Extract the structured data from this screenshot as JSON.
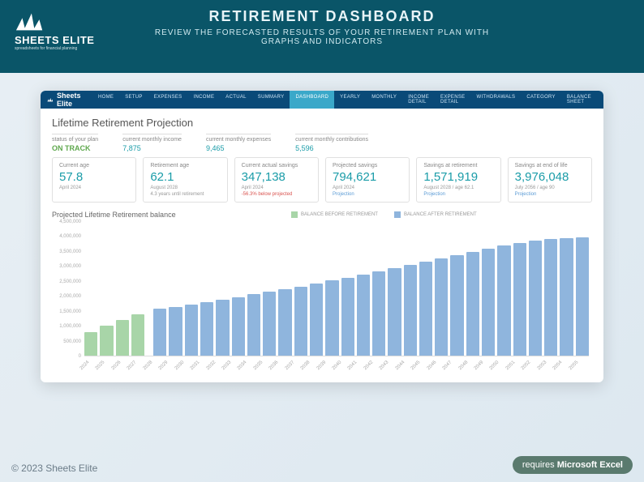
{
  "hero": {
    "logo_title": "SHEETS ELITE",
    "logo_sub": "spreadsheets for financial planning",
    "title": "RETIREMENT DASHBOARD",
    "subtitle": "REVIEW THE FORECASTED RESULTS OF YOUR RETIREMENT PLAN WITH\nGRAPHS AND INDICATORS"
  },
  "nav": {
    "brand": "Sheets Elite",
    "items": [
      "HOME",
      "SETUP",
      "EXPENSES",
      "INCOME",
      "ACTUAL",
      "SUMMARY",
      "DASHBOARD",
      "YEARLY",
      "MONTHLY",
      "INCOME DETAIL",
      "EXPENSE DETAIL",
      "WITHDRAWALS",
      "CATEGORY",
      "BALANCE SHEET"
    ],
    "active_index": 6
  },
  "section_title": "Lifetime Retirement Projection",
  "minis": [
    {
      "label": "status of your plan",
      "value": "ON TRACK",
      "cls": "green"
    },
    {
      "label": "current monthly income",
      "value": "7,875",
      "cls": "teal"
    },
    {
      "label": "current monthly expenses",
      "value": "9,465",
      "cls": "teal"
    },
    {
      "label": "current monthly contributions",
      "value": "5,596",
      "cls": "teal"
    }
  ],
  "stats": [
    {
      "label": "Current age",
      "value": "57.8",
      "value_color": "#1a9ca8",
      "sub1": "April 2024",
      "sub2": ""
    },
    {
      "label": "Retirement age",
      "value": "62.1",
      "value_color": "#1a9ca8",
      "sub1": "August 2028",
      "sub2": "4.3 years until retirement"
    },
    {
      "label": "Current actual savings",
      "value": "347,138",
      "value_color": "#1a9ca8",
      "sub1": "April 2024",
      "sub2": "-56.3% below projected",
      "sub2_cls": "red"
    },
    {
      "label": "Projected savings",
      "value": "794,621",
      "value_color": "#1a9ca8",
      "sub1": "April 2024",
      "sub2": "Projection",
      "sub2_cls": "link"
    },
    {
      "label": "Savings at retirement",
      "value": "1,571,919",
      "value_color": "#1a9ca8",
      "sub1": "August 2028 / age 62.1",
      "sub2": "Projection",
      "sub2_cls": "link"
    },
    {
      "label": "Savings at end of life",
      "value": "3,976,048",
      "value_color": "#1a9ca8",
      "sub1": "July 2056 / age 90",
      "sub2": "Projection",
      "sub2_cls": "link"
    }
  ],
  "chart": {
    "title": "Projected Lifetime Retirement balance",
    "legend": [
      {
        "label": "BALANCE BEFORE RETIREMENT",
        "color": "#a8d5a8"
      },
      {
        "label": "BALANCE AFTER RETIREMENT",
        "color": "#8fb5dd"
      }
    ],
    "ymax": 4500000,
    "yticks": [
      "4,500,000",
      "4,000,000",
      "3,500,000",
      "3,000,000",
      "2,500,000",
      "2,000,000",
      "1,500,000",
      "1,000,000",
      "500,000",
      "0"
    ],
    "years": [
      2024,
      2025,
      2026,
      2027,
      2028,
      2029,
      2030,
      2031,
      2032,
      2033,
      2034,
      2035,
      2036,
      2037,
      2038,
      2039,
      2040,
      2041,
      2042,
      2043,
      2044,
      2045,
      2046,
      2047,
      2048,
      2049,
      2050,
      2051,
      2052,
      2053,
      2054,
      2055
    ],
    "values": [
      800000,
      1000000,
      1200000,
      1400000,
      1571919,
      1650000,
      1730000,
      1810000,
      1890000,
      1970000,
      2060000,
      2150000,
      2240000,
      2330000,
      2430000,
      2530000,
      2630000,
      2730000,
      2830000,
      2940000,
      3050000,
      3160000,
      3270000,
      3380000,
      3490000,
      3600000,
      3700000,
      3790000,
      3860000,
      3920000,
      3960000,
      3976048
    ],
    "split_index": 4,
    "color_before": "#a8d5a8",
    "color_after": "#8fb5dd",
    "grid_color": "#f0f0f0"
  },
  "footer": {
    "left": "© 2023 Sheets Elite",
    "right_prefix": "requires ",
    "right_bold": "Microsoft Excel"
  }
}
